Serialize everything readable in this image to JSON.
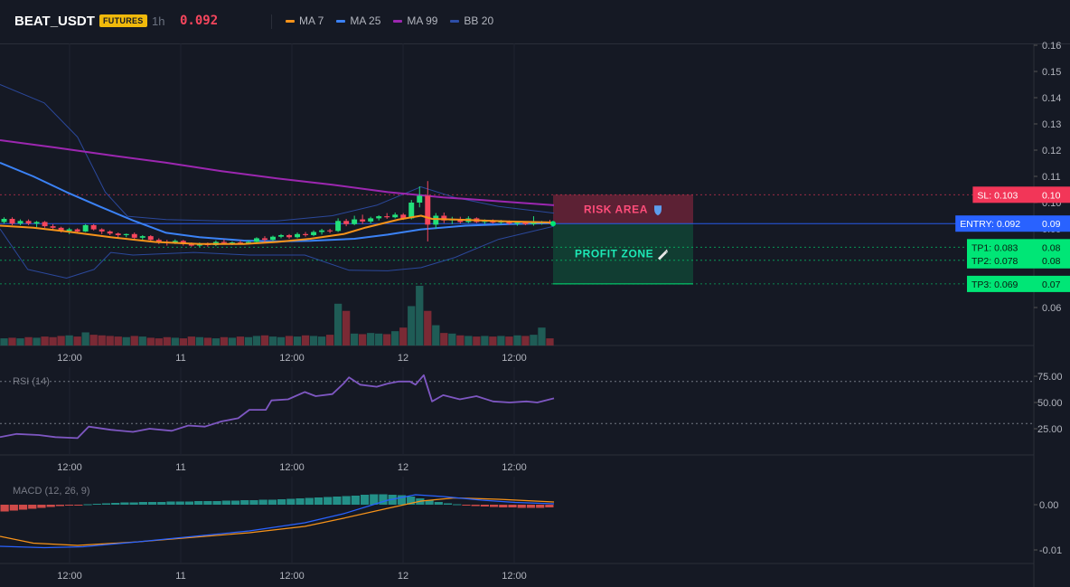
{
  "header": {
    "symbol": "BEAT_USDT",
    "badge": "FUTURES",
    "timeframe": "1h",
    "last_price": "0.092",
    "legend": [
      {
        "label": "MA 7",
        "color": "#f7931a"
      },
      {
        "label": "MA 25",
        "color": "#3b82f6"
      },
      {
        "label": "MA 99",
        "color": "#9c27b0"
      },
      {
        "label": "BB 20",
        "color": "#2d4ea8"
      }
    ]
  },
  "colors": {
    "up": "#26a69a",
    "up_bright": "#22e07a",
    "down": "#f6465d",
    "vol_up": "#1f5c56",
    "vol_down": "#7a2a35",
    "ma7": "#f7931a",
    "ma25": "#3b82f6",
    "ma99": "#9c27b0",
    "bb": "#2d4ea8",
    "rsi": "#7e57c2",
    "macd": "#2962ff",
    "signal": "#f7931a"
  },
  "chart_data": [
    {
      "type": "candlestick",
      "x_tick_labels": [
        "12:00",
        "11",
        "12:00",
        "12",
        "12:00"
      ],
      "y_tick_labels": [
        "0.16",
        "0.15",
        "0.14",
        "0.13",
        "0.12",
        "0.11",
        "0.10",
        "0.09",
        "0.08",
        "0.07",
        "0.06"
      ],
      "ylim": [
        0.0535,
        0.168
      ],
      "candles": [
        [
          0.0926,
          0.0944,
          0.092,
          0.0938
        ],
        [
          0.0938,
          0.0944,
          0.0914,
          0.092
        ],
        [
          0.092,
          0.0936,
          0.0914,
          0.093
        ],
        [
          0.093,
          0.0936,
          0.0914,
          0.092
        ],
        [
          0.092,
          0.093,
          0.0906,
          0.0926
        ],
        [
          0.0926,
          0.093,
          0.0904,
          0.091
        ],
        [
          0.091,
          0.0918,
          0.0896,
          0.0904
        ],
        [
          0.0904,
          0.0908,
          0.0886,
          0.0892
        ],
        [
          0.0892,
          0.0904,
          0.088,
          0.0898
        ],
        [
          0.0898,
          0.0902,
          0.0886,
          0.089
        ],
        [
          0.089,
          0.0918,
          0.0888,
          0.0914
        ],
        [
          0.0914,
          0.0918,
          0.0894,
          0.0898
        ],
        [
          0.0898,
          0.0902,
          0.088,
          0.089
        ],
        [
          0.089,
          0.0894,
          0.0876,
          0.0882
        ],
        [
          0.0882,
          0.0886,
          0.0866,
          0.0876
        ],
        [
          0.0876,
          0.0882,
          0.0868,
          0.088
        ],
        [
          0.088,
          0.0886,
          0.0858,
          0.0866
        ],
        [
          0.0866,
          0.0876,
          0.0856,
          0.0872
        ],
        [
          0.0872,
          0.0876,
          0.0852,
          0.0858
        ],
        [
          0.0858,
          0.0864,
          0.0842,
          0.085
        ],
        [
          0.085,
          0.0858,
          0.0836,
          0.0846
        ],
        [
          0.0846,
          0.086,
          0.0842,
          0.0854
        ],
        [
          0.0854,
          0.0858,
          0.0836,
          0.0842
        ],
        [
          0.0842,
          0.0848,
          0.0832,
          0.0836
        ],
        [
          0.0836,
          0.0848,
          0.083,
          0.0844
        ],
        [
          0.0844,
          0.0848,
          0.0832,
          0.0838
        ],
        [
          0.0838,
          0.0856,
          0.0834,
          0.085
        ],
        [
          0.085,
          0.086,
          0.084,
          0.0846
        ],
        [
          0.0846,
          0.0852,
          0.0838,
          0.0848
        ],
        [
          0.0848,
          0.0856,
          0.084,
          0.0844
        ],
        [
          0.0844,
          0.0856,
          0.084,
          0.085
        ],
        [
          0.085,
          0.0868,
          0.0848,
          0.0864
        ],
        [
          0.0864,
          0.0872,
          0.085,
          0.0858
        ],
        [
          0.0858,
          0.0874,
          0.0854,
          0.087
        ],
        [
          0.087,
          0.088,
          0.0864,
          0.0876
        ],
        [
          0.0876,
          0.088,
          0.0862,
          0.0868
        ],
        [
          0.0868,
          0.0886,
          0.0864,
          0.088
        ],
        [
          0.088,
          0.0888,
          0.087,
          0.0876
        ],
        [
          0.0876,
          0.0894,
          0.0872,
          0.0888
        ],
        [
          0.0888,
          0.09,
          0.0878,
          0.0894
        ],
        [
          0.0894,
          0.09,
          0.0884,
          0.0892
        ],
        [
          0.0892,
          0.094,
          0.0888,
          0.093
        ],
        [
          0.093,
          0.0938,
          0.091,
          0.0918
        ],
        [
          0.0918,
          0.095,
          0.0914,
          0.0936
        ],
        [
          0.0936,
          0.0954,
          0.0918,
          0.0928
        ],
        [
          0.0928,
          0.0946,
          0.092,
          0.094
        ],
        [
          0.094,
          0.0952,
          0.0932,
          0.0948
        ],
        [
          0.0948,
          0.096,
          0.0938,
          0.0944
        ],
        [
          0.0944,
          0.0962,
          0.094,
          0.0954
        ],
        [
          0.0954,
          0.096,
          0.0934,
          0.094
        ],
        [
          0.094,
          0.101,
          0.0936,
          0.1
        ],
        [
          0.1,
          0.1062,
          0.0982,
          0.1026
        ],
        [
          0.1026,
          0.1082,
          0.0852,
          0.0916
        ],
        [
          0.0916,
          0.096,
          0.09,
          0.095
        ],
        [
          0.095,
          0.0962,
          0.0922,
          0.0932
        ],
        [
          0.0932,
          0.0946,
          0.0918,
          0.0938
        ],
        [
          0.0938,
          0.0946,
          0.092,
          0.0926
        ],
        [
          0.0926,
          0.0948,
          0.0922,
          0.094
        ],
        [
          0.094,
          0.0944,
          0.0922,
          0.0926
        ],
        [
          0.0926,
          0.0936,
          0.0918,
          0.0932
        ],
        [
          0.0932,
          0.0936,
          0.092,
          0.0924
        ],
        [
          0.0924,
          0.0934,
          0.0918,
          0.0928
        ],
        [
          0.0928,
          0.0932,
          0.0916,
          0.092
        ],
        [
          0.092,
          0.0928,
          0.0912,
          0.0924
        ],
        [
          0.0924,
          0.0928,
          0.0914,
          0.0918
        ],
        [
          0.0918,
          0.0948,
          0.0912,
          0.0924
        ],
        [
          0.0924,
          0.093,
          0.0916,
          0.0926
        ],
        [
          0.0926,
          0.0934,
          0.0918,
          0.0922
        ]
      ],
      "ma7": [
        [
          0,
          0.0912
        ],
        [
          0.06,
          0.0904
        ],
        [
          0.12,
          0.089
        ],
        [
          0.2,
          0.0868
        ],
        [
          0.28,
          0.085
        ],
        [
          0.36,
          0.0842
        ],
        [
          0.44,
          0.0842
        ],
        [
          0.5,
          0.085
        ],
        [
          0.56,
          0.0862
        ],
        [
          0.62,
          0.088
        ],
        [
          0.66,
          0.0905
        ],
        [
          0.72,
          0.0936
        ],
        [
          0.76,
          0.095
        ],
        [
          0.78,
          0.0938
        ],
        [
          0.84,
          0.0934
        ],
        [
          0.92,
          0.0928
        ],
        [
          1,
          0.0924
        ]
      ],
      "ma25": [
        [
          0,
          0.1152
        ],
        [
          0.06,
          0.11
        ],
        [
          0.12,
          0.104
        ],
        [
          0.18,
          0.0985
        ],
        [
          0.24,
          0.0932
        ],
        [
          0.3,
          0.0885
        ],
        [
          0.36,
          0.0868
        ],
        [
          0.44,
          0.0855
        ],
        [
          0.5,
          0.0852
        ],
        [
          0.56,
          0.0854
        ],
        [
          0.64,
          0.0862
        ],
        [
          0.7,
          0.0878
        ],
        [
          0.76,
          0.0898
        ],
        [
          0.84,
          0.0912
        ],
        [
          0.92,
          0.0918
        ],
        [
          1,
          0.0922
        ]
      ],
      "ma99": [
        [
          0,
          0.1238
        ],
        [
          0.1,
          0.121
        ],
        [
          0.2,
          0.118
        ],
        [
          0.3,
          0.1152
        ],
        [
          0.4,
          0.112
        ],
        [
          0.5,
          0.1092
        ],
        [
          0.6,
          0.1068
        ],
        [
          0.7,
          0.104
        ],
        [
          0.8,
          0.102
        ],
        [
          0.9,
          0.1005
        ],
        [
          1,
          0.099
        ]
      ],
      "bb_upper": [
        [
          0,
          0.145
        ],
        [
          0.08,
          0.138
        ],
        [
          0.14,
          0.125
        ],
        [
          0.19,
          0.104
        ],
        [
          0.23,
          0.0948
        ],
        [
          0.3,
          0.0935
        ],
        [
          0.4,
          0.093
        ],
        [
          0.5,
          0.093
        ],
        [
          0.6,
          0.095
        ],
        [
          0.68,
          0.099
        ],
        [
          0.76,
          0.106
        ],
        [
          0.82,
          0.102
        ],
        [
          0.9,
          0.0985
        ],
        [
          1,
          0.096
        ]
      ],
      "bb_lower": [
        [
          0,
          0.09
        ],
        [
          0.05,
          0.0745
        ],
        [
          0.12,
          0.0712
        ],
        [
          0.17,
          0.0745
        ],
        [
          0.2,
          0.081
        ],
        [
          0.24,
          0.08
        ],
        [
          0.35,
          0.081
        ],
        [
          0.45,
          0.08
        ],
        [
          0.55,
          0.08
        ],
        [
          0.63,
          0.0742
        ],
        [
          0.7,
          0.074
        ],
        [
          0.76,
          0.0752
        ],
        [
          0.82,
          0.079
        ],
        [
          0.9,
          0.086
        ],
        [
          1,
          0.091
        ]
      ],
      "volume": [
        12,
        13,
        12,
        14,
        13,
        15,
        14,
        16,
        17,
        15,
        22,
        18,
        17,
        16,
        15,
        14,
        16,
        15,
        13,
        12,
        14,
        13,
        12,
        15,
        14,
        13,
        12,
        14,
        13,
        15,
        14,
        16,
        17,
        15,
        14,
        16,
        15,
        17,
        16,
        15,
        18,
        70,
        58,
        20,
        19,
        21,
        20,
        19,
        24,
        30,
        66,
        100,
        58,
        34,
        21,
        20,
        17,
        16,
        15,
        16,
        15,
        16,
        15,
        17,
        16,
        18,
        30,
        12
      ],
      "levels": [
        {
          "label": "SL: 0.103",
          "axis": "0.10",
          "value": 0.103,
          "color": "#f23658"
        },
        {
          "label": "ENTRY: 0.092",
          "axis": "0.09",
          "value": 0.092,
          "color": "#2962ff"
        },
        {
          "label": "TP1: 0.083",
          "axis": "0.08",
          "value": 0.083,
          "color": "#00e676"
        },
        {
          "label": "TP2: 0.078",
          "axis": "0.08",
          "value": 0.078,
          "color": "#00e676"
        },
        {
          "label": "TP3: 0.069",
          "axis": "0.07",
          "value": 0.069,
          "color": "#00e676"
        }
      ],
      "zones": [
        {
          "label": "RISK AREA",
          "from": 0.092,
          "to": 0.103,
          "color": "#f23658",
          "icon": "shield-icon"
        },
        {
          "label": "PROFIT ZONE",
          "from": 0.069,
          "to": 0.092,
          "color": "#00e676",
          "icon": "rocket-icon"
        }
      ]
    },
    {
      "type": "line",
      "title": "RSI (14)",
      "y_tick_labels": [
        "75.00",
        "50.00",
        "25.00"
      ],
      "ylim": [
        5,
        86
      ],
      "reference_lines": [
        70,
        30
      ],
      "values": [
        [
          0,
          17
        ],
        [
          0.03,
          20
        ],
        [
          0.07,
          19
        ],
        [
          0.1,
          17
        ],
        [
          0.14,
          16
        ],
        [
          0.16,
          27
        ],
        [
          0.2,
          24
        ],
        [
          0.24,
          22
        ],
        [
          0.27,
          25
        ],
        [
          0.31,
          23
        ],
        [
          0.34,
          28
        ],
        [
          0.37,
          27
        ],
        [
          0.4,
          32
        ],
        [
          0.43,
          35
        ],
        [
          0.45,
          43
        ],
        [
          0.48,
          43
        ],
        [
          0.49,
          52
        ],
        [
          0.52,
          53
        ],
        [
          0.55,
          60
        ],
        [
          0.57,
          56
        ],
        [
          0.6,
          58
        ],
        [
          0.62,
          68
        ],
        [
          0.63,
          74
        ],
        [
          0.65,
          67
        ],
        [
          0.68,
          65
        ],
        [
          0.7,
          68
        ],
        [
          0.72,
          70
        ],
        [
          0.74,
          70
        ],
        [
          0.75,
          67
        ],
        [
          0.765,
          76
        ],
        [
          0.78,
          51
        ],
        [
          0.8,
          57
        ],
        [
          0.83,
          53
        ],
        [
          0.86,
          56
        ],
        [
          0.89,
          51
        ],
        [
          0.92,
          50
        ],
        [
          0.95,
          51
        ],
        [
          0.97,
          50
        ],
        [
          1,
          54
        ]
      ]
    },
    {
      "type": "bar",
      "title": "MACD (12, 26, 9)",
      "y_tick_labels": [
        "0.00",
        "-0.01"
      ],
      "ylim": [
        -0.0128,
        0.0032
      ],
      "histogram": [
        -0.0015,
        -0.0013,
        -0.0011,
        -0.0009,
        -0.0007,
        -0.0005,
        -0.0003,
        -0.0002,
        -0.0001,
        0.0001,
        0.0002,
        0.0003,
        0.0004,
        0.0005,
        0.0005,
        0.0006,
        0.0006,
        0.0006,
        0.0007,
        0.0007,
        0.0007,
        0.0008,
        0.0008,
        0.0008,
        0.0009,
        0.0009,
        0.001,
        0.001,
        0.0011,
        0.0011,
        0.0012,
        0.0013,
        0.0014,
        0.0015,
        0.0016,
        0.0017,
        0.0018,
        0.0019,
        0.002,
        0.0022,
        0.0023,
        0.0023,
        0.0022,
        0.0021,
        0.0018,
        0.0014,
        0.001,
        0.0006,
        0.0003,
        0.0001,
        -0.0002,
        -0.0003,
        -0.0004,
        -0.0005,
        -0.0006,
        -0.0006,
        -0.0007,
        -0.0007,
        -0.0007,
        -0.0006
      ],
      "macd": [
        [
          0,
          -0.0092
        ],
        [
          0.08,
          -0.0095
        ],
        [
          0.15,
          -0.0093
        ],
        [
          0.25,
          -0.0082
        ],
        [
          0.35,
          -0.007
        ],
        [
          0.45,
          -0.0058
        ],
        [
          0.55,
          -0.004
        ],
        [
          0.62,
          -0.002
        ],
        [
          0.7,
          0.001
        ],
        [
          0.75,
          0.0022
        ],
        [
          0.8,
          0.0018
        ],
        [
          0.87,
          0.001
        ],
        [
          0.93,
          0.0005
        ],
        [
          1,
          0.0002
        ]
      ],
      "signal": [
        [
          0,
          -0.007
        ],
        [
          0.06,
          -0.0085
        ],
        [
          0.14,
          -0.009
        ],
        [
          0.25,
          -0.0082
        ],
        [
          0.35,
          -0.0072
        ],
        [
          0.45,
          -0.0062
        ],
        [
          0.55,
          -0.0048
        ],
        [
          0.62,
          -0.003
        ],
        [
          0.7,
          -0.0008
        ],
        [
          0.76,
          0.0008
        ],
        [
          0.82,
          0.0015
        ],
        [
          0.9,
          0.0012
        ],
        [
          1,
          0.0006
        ]
      ]
    }
  ]
}
